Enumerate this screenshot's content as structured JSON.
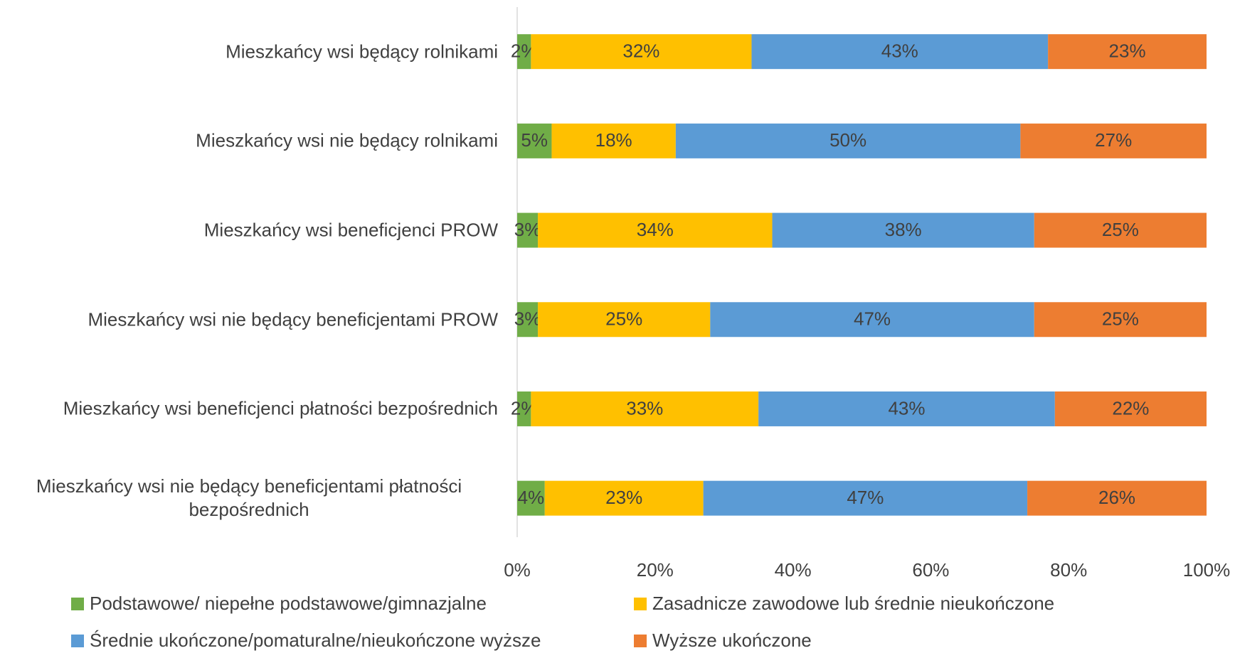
{
  "chart_data": {
    "type": "bar",
    "orientation": "horizontal",
    "stacked": true,
    "categories": [
      "Mieszkańcy wsi będący rolnikami",
      "Mieszkańcy wsi nie będący rolnikami",
      "Mieszkańcy wsi beneficjenci PROW",
      "Mieszkańcy wsi nie będący beneficjentami PROW",
      "Mieszkańcy wsi beneficjenci płatności bezpośrednich",
      "Mieszkańcy wsi nie będący beneficjentami płatności bezpośrednich"
    ],
    "series": [
      {
        "name": "Podstawowe/ niepełne podstawowe/gimnazjalne",
        "color": "#70ad47",
        "values": [
          2,
          5,
          3,
          3,
          2,
          4
        ],
        "value_labels": [
          "2%",
          "5%",
          "3%",
          "3%",
          "2%",
          "4%"
        ]
      },
      {
        "name": "Zasadnicze zawodowe lub średnie nieukończone",
        "color": "#ffc000",
        "values": [
          32,
          18,
          34,
          25,
          33,
          23
        ],
        "value_labels": [
          "32%",
          "18%",
          "34%",
          "25%",
          "33%",
          "23%"
        ]
      },
      {
        "name": "Średnie ukończone/pomaturalne/nieukończone wyższe",
        "color": "#5b9bd5",
        "values": [
          43,
          50,
          38,
          47,
          43,
          47
        ],
        "value_labels": [
          "43%",
          "50%",
          "38%",
          "47%",
          "43%",
          "47%"
        ]
      },
      {
        "name": "Wyższe ukończone",
        "color": "#ed7d31",
        "values": [
          23,
          27,
          25,
          25,
          22,
          26
        ],
        "value_labels": [
          "23%",
          "27%",
          "25%",
          "25%",
          "22%",
          "26%"
        ]
      }
    ],
    "xlim": [
      0,
      100
    ],
    "xticks": [
      {
        "value": 0,
        "label": "0%"
      },
      {
        "value": 20,
        "label": "20%"
      },
      {
        "value": 40,
        "label": "40%"
      },
      {
        "value": 60,
        "label": "60%"
      },
      {
        "value": 80,
        "label": "80%"
      },
      {
        "value": 100,
        "label": "100%"
      }
    ],
    "grid": false,
    "legend": "bottom"
  }
}
